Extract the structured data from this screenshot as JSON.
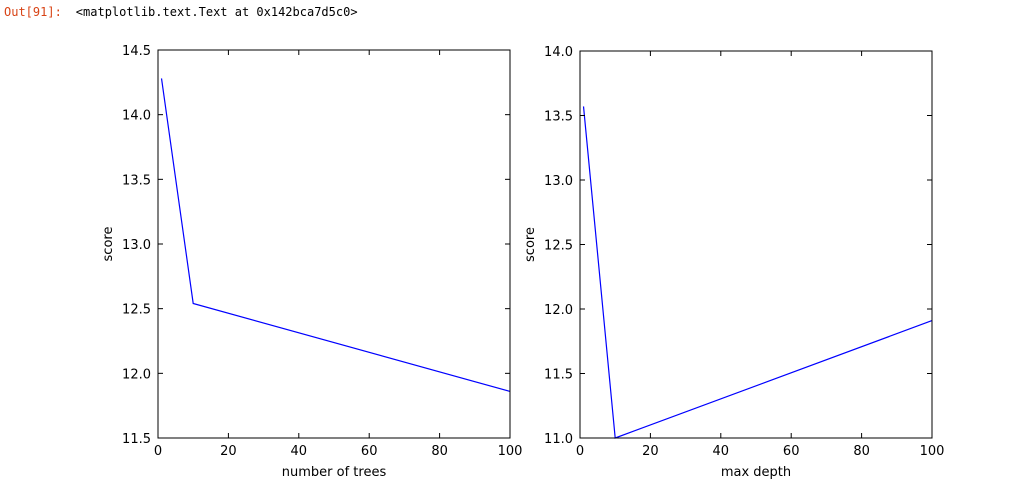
{
  "cell": {
    "prompt": "Out[91]:",
    "output_text": "<matplotlib.text.Text at 0x142bca7d5c0>"
  },
  "chart_data": [
    {
      "type": "line",
      "xlabel": "number of trees",
      "ylabel": "score",
      "xlim": [
        0,
        100
      ],
      "ylim": [
        11.5,
        14.5
      ],
      "xticks": [
        0,
        20,
        40,
        60,
        80,
        100
      ],
      "yticks": [
        11.5,
        12.0,
        12.5,
        13.0,
        13.5,
        14.0,
        14.5
      ],
      "ytick_labels": [
        "11.5",
        "12.0",
        "12.5",
        "13.0",
        "13.5",
        "14.0",
        "14.5"
      ],
      "x": [
        1,
        10,
        100
      ],
      "y": [
        14.28,
        12.54,
        11.86
      ],
      "color": "#0000ff",
      "grid": false
    },
    {
      "type": "line",
      "xlabel": "max depth",
      "ylabel": "score",
      "xlim": [
        0,
        100
      ],
      "ylim": [
        11.0,
        14.0
      ],
      "xticks": [
        0,
        20,
        40,
        60,
        80,
        100
      ],
      "yticks": [
        11.0,
        11.5,
        12.0,
        12.5,
        13.0,
        13.5,
        14.0
      ],
      "ytick_labels": [
        "11.0",
        "11.5",
        "12.0",
        "12.5",
        "13.0",
        "13.5",
        "14.0"
      ],
      "x": [
        1,
        10,
        100
      ],
      "y": [
        13.57,
        11.0,
        11.91
      ],
      "color": "#0000ff",
      "grid": false
    }
  ]
}
